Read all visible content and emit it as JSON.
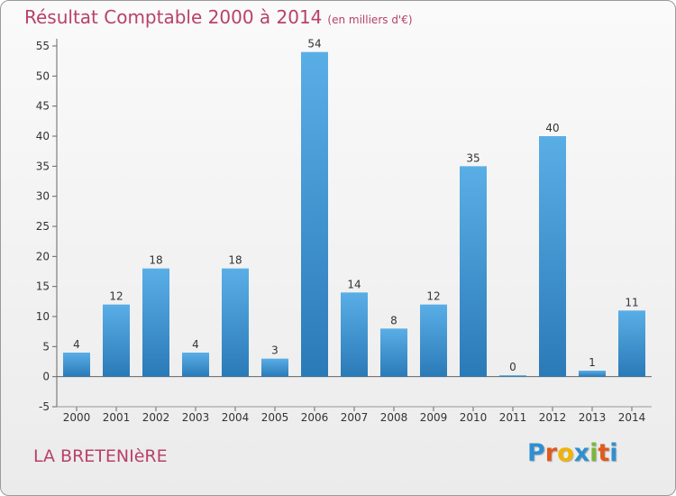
{
  "chart_data": {
    "type": "bar",
    "title": "Résultat Comptable 2000 à 2014",
    "subtitle": "(en milliers d'€)",
    "categories": [
      "2000",
      "2001",
      "2002",
      "2003",
      "2004",
      "2005",
      "2006",
      "2007",
      "2008",
      "2009",
      "2010",
      "2011",
      "2012",
      "2013",
      "2014"
    ],
    "values": [
      4,
      12,
      18,
      4,
      18,
      3,
      54,
      14,
      8,
      12,
      35,
      0,
      40,
      1,
      11
    ],
    "yticks": [
      -5,
      0,
      5,
      10,
      15,
      20,
      25,
      30,
      35,
      40,
      45,
      50,
      55
    ],
    "ylim": [
      -5,
      55
    ],
    "grid": false,
    "bar_color_top": "#5aaee6",
    "bar_color_bottom": "#2a7ab8"
  },
  "commune": "LA BRETENIèRE",
  "logo": {
    "letters": [
      "P",
      "r",
      "o",
      "x",
      "i",
      "t",
      "i"
    ],
    "colors": [
      "#2f8fd0",
      "#e05a1e",
      "#f0b400",
      "#2f8fd0",
      "#7bb63c",
      "#e05a1e",
      "#2f8fd0"
    ]
  }
}
